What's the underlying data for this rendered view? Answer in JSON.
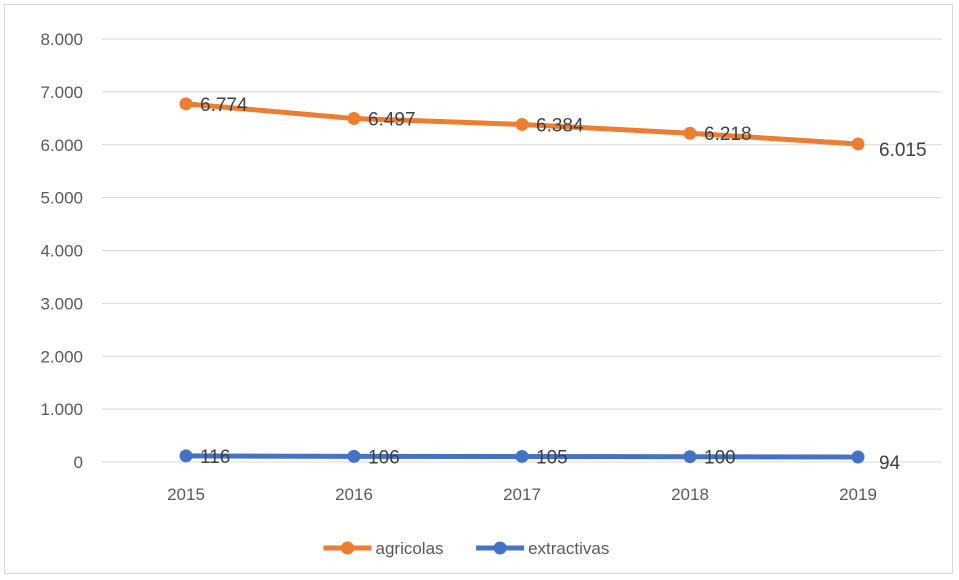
{
  "chart_data": {
    "type": "line",
    "title": "",
    "xlabel": "",
    "ylabel": "",
    "categories": [
      "2015",
      "2016",
      "2017",
      "2018",
      "2019"
    ],
    "ylim": [
      0,
      8000
    ],
    "y_ticks": [
      0,
      1000,
      2000,
      3000,
      4000,
      5000,
      6000,
      7000,
      8000
    ],
    "y_tick_labels": [
      "0",
      "1.000",
      "2.000",
      "3.000",
      "4.000",
      "5.000",
      "6.000",
      "7.000",
      "8.000"
    ],
    "grid": "horizontal",
    "legend_position": "bottom",
    "series": [
      {
        "name": "agricolas",
        "color": "#ed7d31",
        "values": [
          6774,
          6497,
          6384,
          6218,
          6015
        ],
        "data_labels": [
          "6.774",
          "6.497",
          "6.384",
          "6.218",
          "6.015"
        ]
      },
      {
        "name": "extractivas",
        "color": "#4472c4",
        "values": [
          116,
          106,
          105,
          100,
          94
        ],
        "data_labels": [
          "116",
          "106",
          "105",
          "100",
          "94"
        ]
      }
    ]
  }
}
